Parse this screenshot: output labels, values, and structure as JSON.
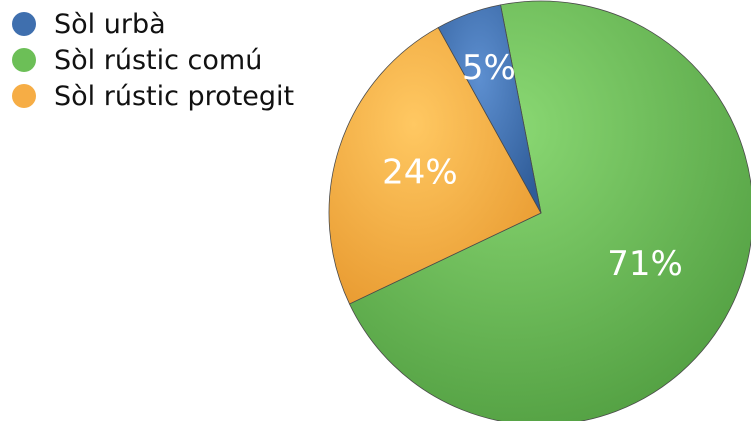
{
  "chart_data": {
    "type": "pie",
    "title": "",
    "legend_position": "top-left",
    "slices": [
      {
        "name": "Sòl urbà",
        "value": 5,
        "label": "5%",
        "color": "#3f6fae"
      },
      {
        "name": "Sòl rústic comú",
        "value": 71,
        "label": "71%",
        "color": "#6cbf57"
      },
      {
        "name": "Sòl rústic protegit",
        "value": 24,
        "label": "24%",
        "color": "#f6ad45"
      }
    ]
  }
}
